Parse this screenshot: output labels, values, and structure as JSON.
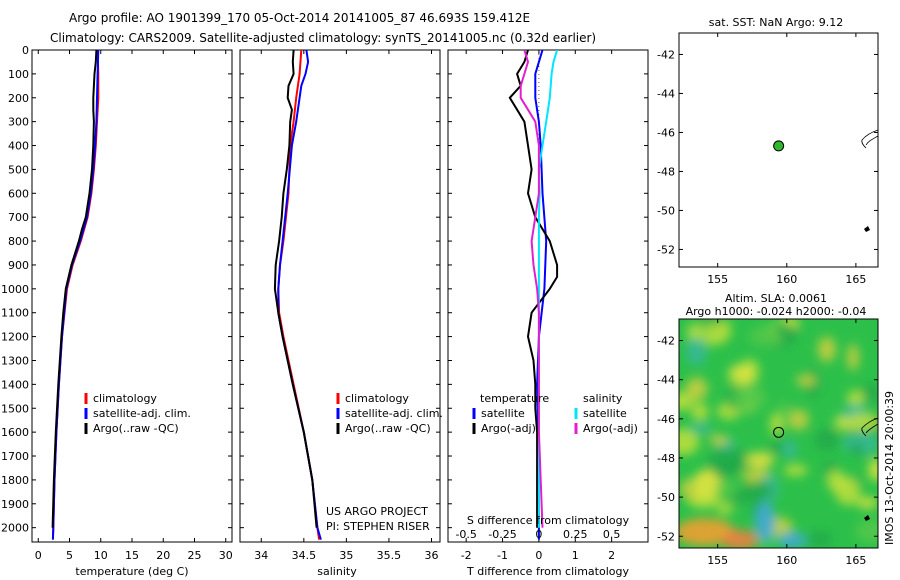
{
  "header": {
    "title_line1": "Argo profile: AO 1901399_170 05-Oct-2014 20141005_87 46.693S 159.412E",
    "title_line2": "Climatology: CARS2009. Satellite-adjusted climatology: synTS_20141005.nc (0.32d earlier)"
  },
  "colors": {
    "climatology": "#ff0000",
    "satellite": "#0000ff",
    "argo": "#000000",
    "cyan": "#00e5ff",
    "magenta": "#e020d0",
    "dot_green": "#2db82d"
  },
  "project_note": {
    "line1": "US ARGO PROJECT",
    "line2": "PI: STEPHEN RISER"
  },
  "imos_stamp": "IMOS 13-Oct-2014 20:00:39",
  "chart_data": [
    {
      "id": "temperature",
      "type": "line",
      "xlabel": "temperature (deg C)",
      "xlim": [
        -1,
        31
      ],
      "xticks": [
        0,
        5,
        10,
        15,
        20,
        25,
        30
      ],
      "ylim": [
        0,
        2060
      ],
      "yticks": [
        0,
        100,
        200,
        300,
        400,
        500,
        600,
        700,
        800,
        900,
        1000,
        1100,
        1200,
        1300,
        1400,
        1500,
        1600,
        1700,
        1800,
        1900,
        2000
      ],
      "legend": {
        "position": "lower-middle",
        "entries": [
          {
            "label": "climatology",
            "color": "#ff0000"
          },
          {
            "label": "satellite-adj. clim.",
            "color": "#0000ff"
          },
          {
            "label": "Argo(..raw -QC)",
            "color": "#000000"
          }
        ]
      },
      "series": [
        {
          "name": "climatology",
          "color": "#ff0000",
          "depth": [
            0,
            100,
            200,
            300,
            400,
            500,
            600,
            700,
            800,
            900,
            1000,
            1200,
            1400,
            1600,
            1800,
            2000,
            2050
          ],
          "values": [
            9.5,
            9.6,
            9.6,
            9.4,
            9.2,
            8.9,
            8.5,
            7.9,
            6.8,
            5.5,
            4.6,
            3.8,
            3.3,
            2.9,
            2.6,
            2.4,
            2.35
          ]
        },
        {
          "name": "satellite-adj. clim.",
          "color": "#0000ff",
          "depth": [
            0,
            100,
            200,
            300,
            400,
            500,
            600,
            700,
            800,
            900,
            1000,
            1200,
            1400,
            1600,
            1800,
            2000,
            2050
          ],
          "values": [
            9.6,
            9.5,
            9.4,
            9.3,
            9.1,
            8.8,
            8.4,
            7.8,
            6.7,
            5.4,
            4.5,
            3.8,
            3.3,
            2.9,
            2.6,
            2.4,
            2.35
          ]
        },
        {
          "name": "Argo",
          "color": "#000000",
          "depth": [
            0,
            50,
            100,
            150,
            200,
            250,
            300,
            400,
            500,
            600,
            700,
            750,
            800,
            900,
            1000,
            1100,
            1200,
            1400,
            1600,
            1800,
            2000
          ],
          "values": [
            9.3,
            9.2,
            9.0,
            8.9,
            8.8,
            8.8,
            8.9,
            8.8,
            8.6,
            8.2,
            7.6,
            7.0,
            6.5,
            5.3,
            4.4,
            4.0,
            3.7,
            3.2,
            2.8,
            2.5,
            2.3
          ]
        }
      ]
    },
    {
      "id": "salinity",
      "type": "line",
      "xlabel": "salinity",
      "xlim": [
        33.75,
        36.1
      ],
      "xticks": [
        34,
        34.5,
        35,
        35.5,
        36
      ],
      "ylim": [
        0,
        2060
      ],
      "legend": {
        "position": "lower-middle",
        "entries": [
          {
            "label": "climatology",
            "color": "#ff0000"
          },
          {
            "label": "satellite-adj. clim.",
            "color": "#0000ff"
          },
          {
            "label": "Argo(..raw -QC)",
            "color": "#000000"
          }
        ]
      },
      "series": [
        {
          "name": "climatology",
          "color": "#ff0000",
          "depth": [
            0,
            100,
            200,
            300,
            400,
            600,
            800,
            900,
            1000,
            1100,
            1200,
            1400,
            1600,
            1800,
            2000,
            2050
          ],
          "values": [
            34.47,
            34.45,
            34.41,
            34.38,
            34.34,
            34.32,
            34.26,
            34.22,
            34.2,
            34.21,
            34.26,
            34.38,
            34.5,
            34.6,
            34.66,
            34.68
          ]
        },
        {
          "name": "satellite-adj. clim.",
          "color": "#0000ff",
          "depth": [
            0,
            50,
            100,
            150,
            200,
            300,
            400,
            600,
            800,
            900,
            1000,
            1100,
            1200,
            1400,
            1600,
            1800,
            2000,
            2050
          ],
          "values": [
            34.53,
            34.55,
            34.52,
            34.47,
            34.45,
            34.41,
            34.36,
            34.31,
            34.25,
            34.22,
            34.2,
            34.2,
            34.25,
            34.37,
            34.5,
            34.6,
            34.66,
            34.7
          ]
        },
        {
          "name": "Argo",
          "color": "#000000",
          "depth": [
            0,
            50,
            100,
            150,
            200,
            250,
            300,
            400,
            500,
            600,
            700,
            800,
            900,
            1000,
            1100,
            1200,
            1400,
            1600,
            1800,
            2000
          ],
          "values": [
            34.38,
            34.37,
            34.38,
            34.32,
            34.31,
            34.36,
            34.34,
            34.33,
            34.3,
            34.26,
            34.24,
            34.21,
            34.17,
            34.16,
            34.2,
            34.25,
            34.37,
            34.5,
            34.6,
            34.65
          ]
        }
      ]
    },
    {
      "id": "difference",
      "type": "line",
      "xlabel": "T difference from climatology",
      "xlabel_top": "S difference from climatology",
      "xlim": [
        -2.5,
        3.0
      ],
      "xticks": [
        -2,
        -1,
        0,
        1,
        2
      ],
      "xticklabels_top": [
        "-0.5",
        "-0.25",
        "0",
        "0.25",
        "0.5"
      ],
      "xticks_top_position": [
        -2,
        -1,
        0,
        1,
        2
      ],
      "ylim": [
        0,
        2060
      ],
      "legend": {
        "position": "lower-middle",
        "header_left": "temperature",
        "header_right": "salinity",
        "entries": [
          {
            "label": "satellite",
            "color": "#0000ff"
          },
          {
            "label": "Argo(-adj)",
            "color": "#000000"
          },
          {
            "label": "satellite",
            "color": "#00e5ff"
          },
          {
            "label": "Argo(-adj)",
            "color": "#e020d0"
          }
        ]
      },
      "series": [
        {
          "name": "T satellite",
          "color": "#0000ff",
          "depth": [
            0,
            50,
            100,
            200,
            300,
            400,
            600,
            800,
            1000,
            1200,
            1400,
            1600,
            2000,
            2050
          ],
          "values": [
            0.1,
            0.0,
            -0.1,
            -0.1,
            0.0,
            0.05,
            0.1,
            0.2,
            0.15,
            0.0,
            -0.05,
            -0.02,
            0.0,
            0.0
          ]
        },
        {
          "name": "T Argo",
          "color": "#000000",
          "depth": [
            0,
            50,
            100,
            150,
            200,
            250,
            300,
            400,
            500,
            600,
            700,
            800,
            900,
            950,
            1000,
            1100,
            1200,
            1300,
            1400,
            1500,
            1600,
            1800,
            2000
          ],
          "values": [
            -0.3,
            -0.4,
            -0.6,
            -0.5,
            -0.8,
            -0.6,
            -0.4,
            -0.3,
            -0.2,
            -0.3,
            -0.1,
            0.3,
            0.5,
            0.5,
            0.3,
            -0.2,
            -0.3,
            -0.15,
            -0.1,
            -0.1,
            -0.05,
            -0.05,
            -0.05
          ]
        },
        {
          "name": "S satellite",
          "color": "#00e5ff",
          "depth": [
            0,
            50,
            100,
            200,
            300,
            400,
            500,
            600,
            700,
            800,
            1000,
            1200,
            1400,
            1600,
            2000
          ],
          "values": [
            0.5,
            0.4,
            0.35,
            0.3,
            0.2,
            0.1,
            0.0,
            0.02,
            0.0,
            0.0,
            0.0,
            0.0,
            0.0,
            0.0,
            0.0
          ]
        },
        {
          "name": "S Argo",
          "color": "#e020d0",
          "depth": [
            0,
            50,
            100,
            150,
            200,
            250,
            300,
            400,
            500,
            600,
            700,
            800,
            900,
            1000,
            1100,
            1200,
            1400,
            1600,
            1800,
            2000
          ],
          "values": [
            -0.4,
            -0.3,
            -0.4,
            -0.5,
            -0.5,
            -0.3,
            -0.1,
            0.0,
            0.0,
            0.0,
            -0.1,
            -0.2,
            -0.15,
            -0.05,
            0.0,
            0.0,
            0.0,
            0.0,
            0.05,
            0.1
          ]
        }
      ]
    },
    {
      "id": "sst_map",
      "type": "scatter",
      "title": "sat. SST: NaN Argo: 9.12",
      "xlim": [
        152.2,
        166.6
      ],
      "xticks": [
        155,
        160,
        165
      ],
      "ylim": [
        -52.9,
        -40.9
      ],
      "yticks": [
        -42,
        -44,
        -46,
        -48,
        -50,
        -52
      ],
      "points": [
        {
          "lon": 159.41,
          "lat": -46.69,
          "label": "Argo float"
        }
      ]
    },
    {
      "id": "sla_map",
      "type": "heatmap",
      "title": "Altim. SLA: 0.0061",
      "subtitle": "Argo h1000: -0.024 h2000: -0.04",
      "xlim": [
        152.2,
        166.6
      ],
      "xticks": [
        155,
        160,
        165
      ],
      "ylim": [
        -52.6,
        -40.9
      ],
      "yticks": [
        -42,
        -44,
        -46,
        -48,
        -50,
        -52
      ],
      "points": [
        {
          "lon": 159.41,
          "lat": -46.69,
          "label": "Argo float"
        }
      ]
    }
  ]
}
